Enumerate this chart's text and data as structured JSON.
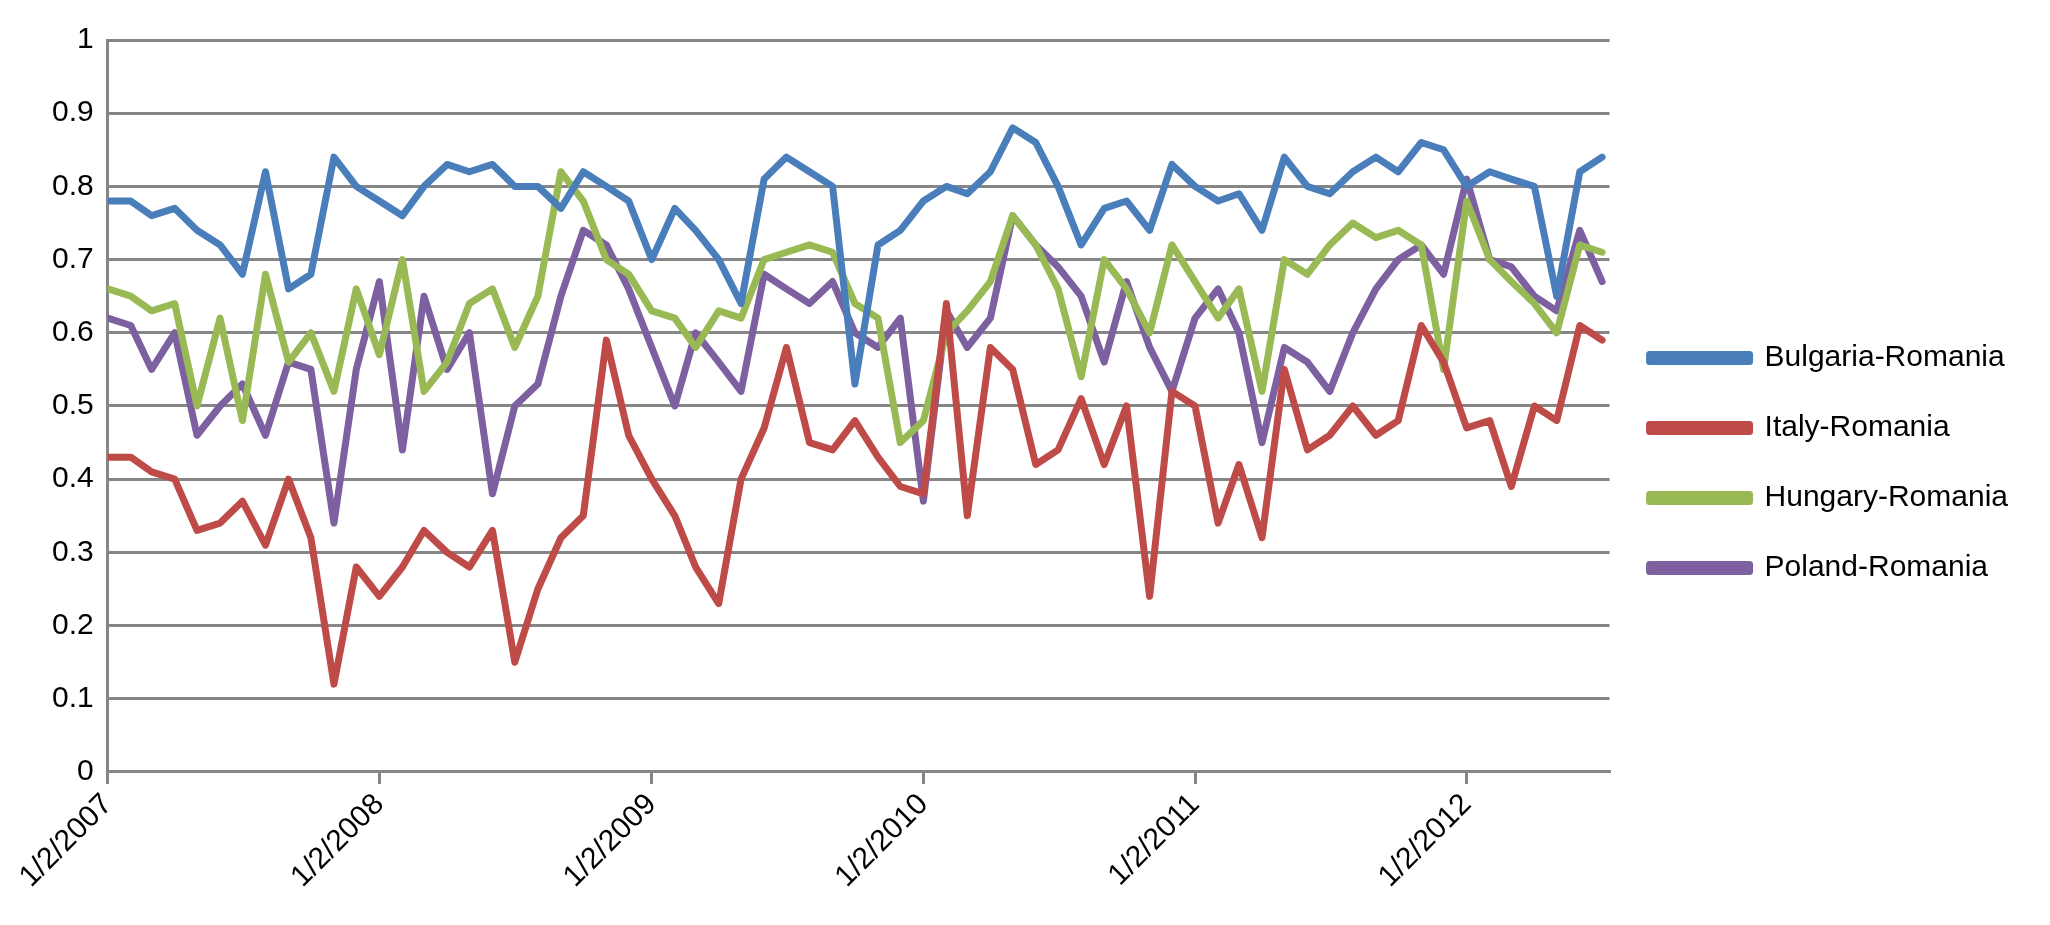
{
  "chart_data": {
    "type": "line",
    "x": [
      "2007-01-02",
      "2007-02-02",
      "2007-03-02",
      "2007-04-02",
      "2007-05-02",
      "2007-06-02",
      "2007-07-02",
      "2007-08-02",
      "2007-09-02",
      "2007-10-02",
      "2007-11-02",
      "2007-12-02",
      "2008-01-02",
      "2008-02-02",
      "2008-03-02",
      "2008-04-02",
      "2008-05-02",
      "2008-06-02",
      "2008-07-02",
      "2008-08-02",
      "2008-09-02",
      "2008-10-02",
      "2008-11-02",
      "2008-12-02",
      "2009-01-02",
      "2009-02-02",
      "2009-03-02",
      "2009-04-02",
      "2009-05-02",
      "2009-06-02",
      "2009-07-02",
      "2009-08-02",
      "2009-09-02",
      "2009-10-02",
      "2009-11-02",
      "2009-12-02",
      "2010-01-02",
      "2010-02-02",
      "2010-03-02",
      "2010-04-02",
      "2010-05-02",
      "2010-06-02",
      "2010-07-02",
      "2010-08-02",
      "2010-09-02",
      "2010-10-02",
      "2010-11-02",
      "2010-12-02",
      "2011-01-02",
      "2011-02-02",
      "2011-03-02",
      "2011-04-02",
      "2011-05-02",
      "2011-06-02",
      "2011-07-02",
      "2011-08-02",
      "2011-09-02",
      "2011-10-02",
      "2011-11-02",
      "2011-12-02",
      "2012-01-02",
      "2012-02-02",
      "2012-03-02",
      "2012-04-02",
      "2012-05-02",
      "2012-06-02",
      "2012-07-02"
    ],
    "series": [
      {
        "name": "Bulgaria-Romania",
        "color": "#4a7ebb",
        "values": [
          0.78,
          0.78,
          0.76,
          0.77,
          0.74,
          0.72,
          0.68,
          0.82,
          0.66,
          0.68,
          0.84,
          0.8,
          0.78,
          0.76,
          0.8,
          0.83,
          0.82,
          0.83,
          0.8,
          0.8,
          0.77,
          0.82,
          0.8,
          0.78,
          0.7,
          0.77,
          0.74,
          0.7,
          0.64,
          0.81,
          0.84,
          0.82,
          0.8,
          0.53,
          0.72,
          0.74,
          0.78,
          0.8,
          0.79,
          0.82,
          0.88,
          0.86,
          0.8,
          0.72,
          0.77,
          0.78,
          0.74,
          0.83,
          0.8,
          0.78,
          0.79,
          0.74,
          0.84,
          0.8,
          0.79,
          0.82,
          0.84,
          0.82,
          0.86,
          0.85,
          0.8,
          0.82,
          0.81,
          0.8,
          0.65,
          0.82,
          0.84
        ]
      },
      {
        "name": "Italy-Romania",
        "color": "#be4b48",
        "values": [
          0.43,
          0.43,
          0.41,
          0.4,
          0.33,
          0.34,
          0.37,
          0.31,
          0.4,
          0.32,
          0.12,
          0.28,
          0.24,
          0.28,
          0.33,
          0.3,
          0.28,
          0.33,
          0.15,
          0.25,
          0.32,
          0.35,
          0.59,
          0.46,
          0.4,
          0.35,
          0.28,
          0.23,
          0.4,
          0.47,
          0.58,
          0.45,
          0.44,
          0.48,
          0.43,
          0.39,
          0.38,
          0.64,
          0.35,
          0.58,
          0.55,
          0.42,
          0.44,
          0.51,
          0.42,
          0.5,
          0.24,
          0.52,
          0.5,
          0.34,
          0.42,
          0.32,
          0.55,
          0.44,
          0.46,
          0.5,
          0.46,
          0.48,
          0.61,
          0.56,
          0.47,
          0.48,
          0.39,
          0.5,
          0.48,
          0.61,
          0.59
        ]
      },
      {
        "name": "Hungary-Romania",
        "color": "#98b954",
        "values": [
          0.66,
          0.65,
          0.63,
          0.64,
          0.5,
          0.62,
          0.48,
          0.68,
          0.56,
          0.6,
          0.52,
          0.66,
          0.57,
          0.7,
          0.52,
          0.56,
          0.64,
          0.66,
          0.58,
          0.65,
          0.82,
          0.78,
          0.7,
          0.68,
          0.63,
          0.62,
          0.58,
          0.63,
          0.62,
          0.7,
          0.71,
          0.72,
          0.71,
          0.64,
          0.62,
          0.45,
          0.48,
          0.6,
          0.63,
          0.67,
          0.76,
          0.72,
          0.66,
          0.54,
          0.7,
          0.66,
          0.6,
          0.72,
          0.67,
          0.62,
          0.66,
          0.52,
          0.7,
          0.68,
          0.72,
          0.75,
          0.73,
          0.74,
          0.72,
          0.55,
          0.78,
          0.7,
          0.67,
          0.64,
          0.6,
          0.72,
          0.71
        ]
      },
      {
        "name": "Poland-Romania",
        "color": "#7d60a0",
        "values": [
          0.62,
          0.61,
          0.55,
          0.6,
          0.46,
          0.5,
          0.53,
          0.46,
          0.56,
          0.55,
          0.34,
          0.55,
          0.67,
          0.44,
          0.65,
          0.55,
          0.6,
          0.38,
          0.5,
          0.53,
          0.65,
          0.74,
          0.72,
          0.66,
          0.58,
          0.5,
          0.6,
          0.56,
          0.52,
          0.68,
          0.66,
          0.64,
          0.67,
          0.6,
          0.58,
          0.62,
          0.37,
          0.63,
          0.58,
          0.62,
          0.76,
          0.72,
          0.69,
          0.65,
          0.56,
          0.67,
          0.58,
          0.52,
          0.62,
          0.66,
          0.6,
          0.45,
          0.58,
          0.56,
          0.52,
          0.6,
          0.66,
          0.7,
          0.72,
          0.68,
          0.81,
          0.7,
          0.69,
          0.65,
          0.63,
          0.74,
          0.67
        ]
      }
    ],
    "xlim": [
      "2007-01-02",
      "2012-07-12"
    ],
    "xticks": [
      {
        "value": "2007-01-02",
        "label": "1/2/2007"
      },
      {
        "value": "2008-01-02",
        "label": "1/2/2008"
      },
      {
        "value": "2009-01-02",
        "label": "1/2/2009"
      },
      {
        "value": "2010-01-02",
        "label": "1/2/2010"
      },
      {
        "value": "2011-01-02",
        "label": "1/2/2011"
      },
      {
        "value": "2012-01-02",
        "label": "1/2/2012"
      }
    ],
    "ylim": [
      0,
      1
    ],
    "yticks": [
      0,
      0.1,
      0.2,
      0.3,
      0.4,
      0.5,
      0.6,
      0.7,
      0.8,
      0.9,
      1
    ],
    "grid": "y",
    "legend": "right",
    "marker": "none",
    "line_style": "solid"
  }
}
